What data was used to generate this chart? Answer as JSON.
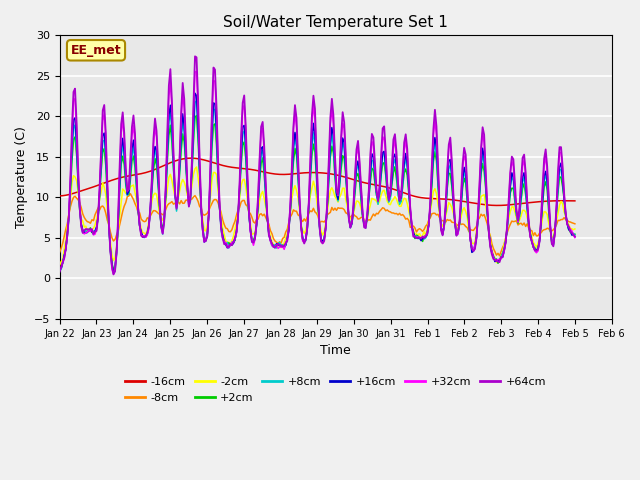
{
  "title": "Soil/Water Temperature Set 1",
  "xlabel": "Time",
  "ylabel": "Temperature (C)",
  "ylim": [
    -5,
    30
  ],
  "annotation": "EE_met",
  "series_colors": {
    "-16cm": "#dd0000",
    "-8cm": "#ff8800",
    "-2cm": "#ffff00",
    "+2cm": "#00cc00",
    "+8cm": "#00cccc",
    "+16cm": "#0000cc",
    "+32cm": "#ff00ff",
    "+64cm": "#aa00cc"
  },
  "x_tick_labels": [
    "Jan 22",
    "Jan 23",
    "Jan 24",
    "Jan 25",
    "Jan 26",
    "Jan 27",
    "Jan 28",
    "Jan 29",
    "Jan 30",
    "Jan 31",
    "Feb 1",
    "Feb 2",
    "Feb 3",
    "Feb 4",
    "Feb 5",
    "Feb 6"
  ],
  "n_points": 336
}
